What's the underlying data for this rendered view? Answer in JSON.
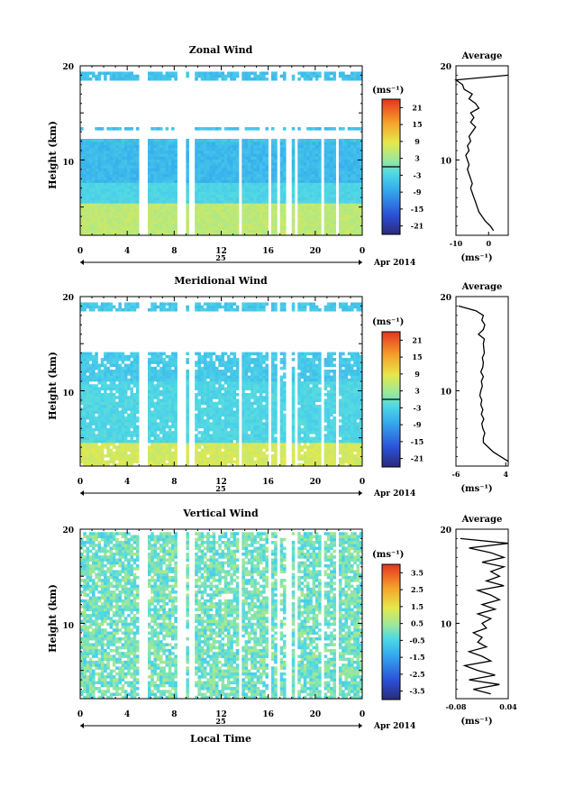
{
  "chart_data": [
    {
      "type": "heatmap",
      "title": "Zonal Wind",
      "ylabel": "Height (km)",
      "ylim": [
        2,
        20
      ],
      "yticks": [
        "10",
        "20"
      ],
      "xlim": [
        0,
        24
      ],
      "xticks": [
        "0",
        "4",
        "8",
        "12",
        "16",
        "20",
        "0"
      ],
      "date_label": "25",
      "month_label": "Apr 2014",
      "colorbar": {
        "unit": "(ms⁻¹)",
        "ticks": [
          "21",
          "15",
          "9",
          "3",
          "-3",
          "-9",
          "-15",
          "-21"
        ],
        "range": [
          -24,
          24
        ]
      },
      "average": {
        "title": "Average",
        "xlim": [
          -10,
          6
        ],
        "xticks": [
          "-10",
          "0"
        ],
        "xlabel": "(ms⁻¹)",
        "height": [
          2.5,
          3,
          3.5,
          4,
          4.5,
          5,
          5.5,
          6,
          6.5,
          7,
          7.5,
          8,
          8.5,
          9,
          9.5,
          10,
          10.5,
          11,
          11.5,
          12,
          12.5,
          13,
          13.5,
          14,
          14.5,
          15,
          15.5,
          16,
          16.5,
          17,
          17.5,
          18,
          18.5,
          19
        ],
        "value": [
          1.5,
          0.5,
          -1,
          -2,
          -3,
          -3.5,
          -4,
          -4.5,
          -5,
          -5.5,
          -5,
          -5.5,
          -6,
          -6.5,
          -6,
          -6.5,
          -7,
          -6,
          -6.5,
          -5.5,
          -6,
          -5,
          -4,
          -5.5,
          -4.5,
          -5.5,
          -3,
          -4,
          -6,
          -5,
          -7.5,
          -8,
          -10,
          6
        ]
      }
    },
    {
      "type": "heatmap",
      "title": "Meridional Wind",
      "ylabel": "Height (km)",
      "ylim": [
        2,
        20
      ],
      "yticks": [
        "10",
        "20"
      ],
      "xlim": [
        0,
        24
      ],
      "xticks": [
        "0",
        "4",
        "8",
        "12",
        "16",
        "20",
        "0"
      ],
      "date_label": "25",
      "month_label": "Apr 2014",
      "colorbar": {
        "unit": "(ms⁻¹)",
        "ticks": [
          "21",
          "15",
          "9",
          "3",
          "-3",
          "-9",
          "-15",
          "-21"
        ],
        "range": [
          -24,
          24
        ]
      },
      "average": {
        "title": "Average",
        "xlim": [
          -6,
          4.5
        ],
        "xticks": [
          "-6",
          "4"
        ],
        "xlabel": "(ms⁻¹)",
        "height": [
          2.5,
          3,
          3.5,
          4,
          4.5,
          5,
          5.5,
          6,
          6.5,
          7,
          7.5,
          8,
          8.5,
          9,
          9.5,
          10,
          10.5,
          11,
          11.5,
          12,
          12.5,
          13,
          13.5,
          14,
          14.5,
          15,
          15.5,
          16,
          16.5,
          17,
          17.5,
          18,
          18.5,
          19
        ],
        "value": [
          4.5,
          3,
          1.5,
          0.5,
          -0.5,
          -0.5,
          -0.2,
          -0.6,
          -0.8,
          -0.4,
          -0.9,
          -0.6,
          -1,
          -0.8,
          -1.2,
          -1,
          -0.7,
          -0.9,
          -0.5,
          -1,
          -0.6,
          -0.5,
          -0.7,
          -0.3,
          -0.4,
          -0.5,
          -0.3,
          -1.5,
          -0.5,
          -0.2,
          -0.8,
          -0.5,
          -2,
          -5.5
        ]
      }
    },
    {
      "type": "heatmap",
      "title": "Vertical Wind",
      "ylabel": "Height (km)",
      "xlabel": "Local Time",
      "ylim": [
        2,
        20
      ],
      "yticks": [
        "10",
        "20"
      ],
      "xlim": [
        0,
        24
      ],
      "xticks": [
        "0",
        "4",
        "8",
        "12",
        "16",
        "20",
        "0"
      ],
      "date_label": "25",
      "month_label": "Apr 2014",
      "colorbar": {
        "unit": "(ms⁻¹)",
        "ticks": [
          "3.5",
          "2.5",
          "1.5",
          "0.5",
          "-0.5",
          "-1.5",
          "-2.5",
          "-3.5"
        ],
        "range": [
          -4,
          4
        ]
      },
      "average": {
        "title": "Average",
        "xlim": [
          -0.08,
          0.04
        ],
        "xticks": [
          "-0.08",
          "0.04"
        ],
        "xlabel": "(ms⁻¹)",
        "height": [
          2.5,
          3,
          3.5,
          4,
          4.5,
          5,
          5.5,
          6,
          6.5,
          7,
          7.5,
          8,
          8.5,
          9,
          9.5,
          10,
          10.5,
          11,
          11.5,
          12,
          12.5,
          13,
          13.5,
          14,
          14.5,
          15,
          15.5,
          16,
          16.5,
          17,
          17.5,
          18,
          18.5,
          19
        ],
        "value": [
          0.0,
          -0.04,
          0.02,
          -0.05,
          0.01,
          -0.03,
          -0.06,
          0.0,
          -0.02,
          -0.05,
          -0.01,
          -0.03,
          -0.02,
          -0.04,
          -0.01,
          -0.02,
          0.0,
          -0.03,
          0.01,
          -0.02,
          0.02,
          0.0,
          -0.03,
          0.03,
          -0.01,
          0.02,
          0.0,
          0.03,
          -0.02,
          0.03,
          0.0,
          -0.05,
          0.04,
          -0.07
        ]
      }
    }
  ]
}
